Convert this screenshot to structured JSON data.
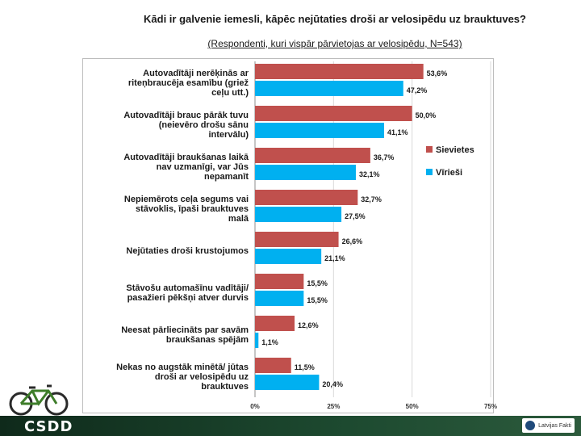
{
  "chart_data": {
    "type": "bar",
    "orientation": "horizontal",
    "title": "Kādi ir galvenie iemesli, kāpēc nejūtaties droši ar velosipēdu uz brauktuves?",
    "subtitle": "(Respondenti, kuri vispār pārvietojas ar velosipēdu, N=543)",
    "categories": [
      "Autovadītāji nerēķinās ar riteņbraucēja esamību (griež ceļu utt.)",
      "Autovadītāji brauc pārāk tuvu (neievēro drošu sānu intervālu)",
      "Autovadītāji braukšanas laikā nav uzmanīgi, var Jūs nepamanīt",
      "Nepiemērots ceļa segums vai stāvoklis, īpaši brauktuves malā",
      "Nejūtaties droši krustojumos",
      "Stāvošu automašīnu vadītāji/ pasažieri pēkšņi atver durvis",
      "Neesat pārliecināts par savām braukšanas spējām",
      "Nekas no augstāk minētā/ jūtas droši ar velosipēdu uz brauktuves"
    ],
    "series": [
      {
        "name": "Sievietes",
        "color": "#c0504d",
        "values": [
          53.6,
          50.0,
          36.7,
          32.7,
          26.6,
          15.5,
          12.6,
          11.5
        ],
        "labels": [
          "53,6%",
          "50,0%",
          "36,7%",
          "32,7%",
          "26,6%",
          "15,5%",
          "12,6%",
          "11,5%"
        ]
      },
      {
        "name": "Vīrieši",
        "color": "#00b0f0",
        "values": [
          47.2,
          41.1,
          32.1,
          27.5,
          21.1,
          15.5,
          1.1,
          20.4
        ],
        "labels": [
          "47,2%",
          "41,1%",
          "32,1%",
          "27,5%",
          "21,1%",
          "15,5%",
          "1,1%",
          "20,4%"
        ]
      }
    ],
    "xlim": [
      0,
      75
    ],
    "xticks": [
      0,
      25,
      50,
      75
    ],
    "xtick_labels": [
      "0%",
      "25%",
      "50%",
      "75%"
    ],
    "grid": true,
    "legend_position": "right"
  },
  "footer": {
    "logo_text": "CSDD",
    "partner_text": "Latvijas Fakti"
  }
}
